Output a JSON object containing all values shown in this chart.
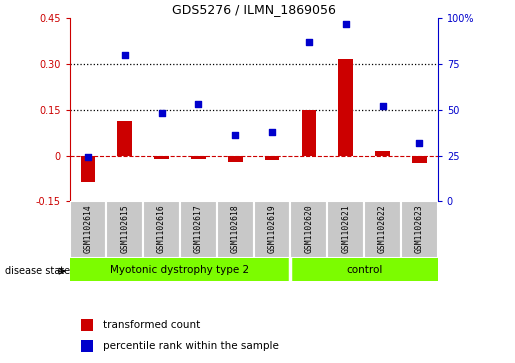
{
  "title": "GDS5276 / ILMN_1869056",
  "samples": [
    "GSM1102614",
    "GSM1102615",
    "GSM1102616",
    "GSM1102617",
    "GSM1102618",
    "GSM1102619",
    "GSM1102620",
    "GSM1102621",
    "GSM1102622",
    "GSM1102623"
  ],
  "transformed_count": [
    -0.085,
    0.115,
    -0.01,
    -0.01,
    -0.02,
    -0.015,
    0.15,
    0.315,
    0.015,
    -0.025
  ],
  "percentile_rank": [
    24,
    80,
    48,
    53,
    36,
    38,
    87,
    97,
    52,
    32
  ],
  "disease_state_groups": [
    {
      "label": "Myotonic dystrophy type 2",
      "start": 0,
      "end": 6,
      "color": "#7cfc00"
    },
    {
      "label": "control",
      "start": 6,
      "end": 10,
      "color": "#7cfc00"
    }
  ],
  "ylim_left": [
    -0.15,
    0.45
  ],
  "ylim_right": [
    0,
    100
  ],
  "yticks_left": [
    -0.15,
    0.0,
    0.15,
    0.3,
    0.45
  ],
  "yticks_right": [
    0,
    25,
    50,
    75,
    100
  ],
  "ytick_labels_left": [
    "-0.15",
    "0",
    "0.15",
    "0.30",
    "0.45"
  ],
  "ytick_labels_right": [
    "0",
    "25",
    "50",
    "75",
    "100%"
  ],
  "hlines": [
    0.15,
    0.3
  ],
  "bar_color": "#cc0000",
  "dot_color": "#0000cc",
  "zero_line_color": "#cc0000",
  "label_bar": "transformed count",
  "label_dot": "percentile rank within the sample",
  "disease_state_label": "disease state",
  "box_bg": "#c8c8c8",
  "group_divider": 6
}
